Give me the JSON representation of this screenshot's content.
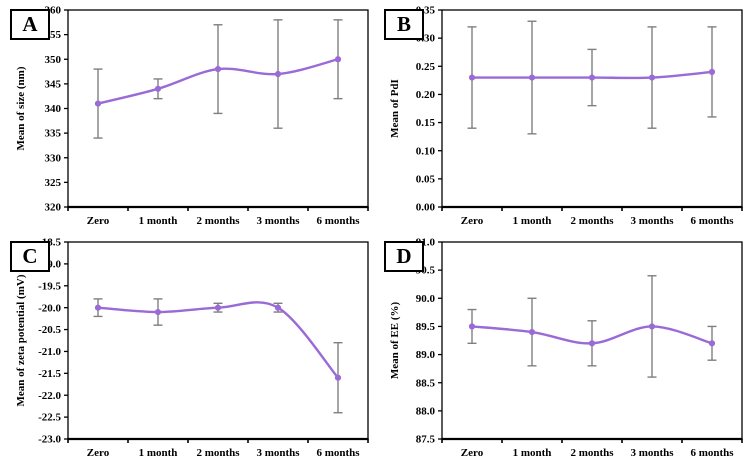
{
  "style": {
    "line_color": "#9a6ad6",
    "marker_color": "#9a6ad6",
    "error_color": "#7f7f7f",
    "axis_color": "#000000",
    "background": "#ffffff"
  },
  "chart_data": [
    {
      "panel": "A",
      "type": "line",
      "ylabel": "Mean of size (nm)",
      "xlabel": "",
      "ylim": [
        320,
        360
      ],
      "yticks": [
        320,
        325,
        330,
        335,
        340,
        345,
        350,
        355,
        360
      ],
      "ytick_labels": [
        "320",
        "325",
        "330",
        "335",
        "340",
        "345",
        "350",
        "355",
        "360"
      ],
      "categories": [
        "Zero",
        "1 month",
        "2 months",
        "3 months",
        "6 months"
      ],
      "values": [
        341,
        344,
        348,
        347,
        350
      ],
      "error_low": [
        334,
        342,
        339,
        336,
        342
      ],
      "error_high": [
        348,
        346,
        357,
        358,
        358
      ],
      "legend": "none",
      "grid": false
    },
    {
      "panel": "B",
      "type": "line",
      "ylabel": "Mean of PdI",
      "xlabel": "",
      "ylim": [
        0.0,
        0.35
      ],
      "yticks": [
        0.0,
        0.05,
        0.1,
        0.15,
        0.2,
        0.25,
        0.3,
        0.35
      ],
      "ytick_labels": [
        "0.00",
        "0.05",
        "0.10",
        "0.15",
        "0.20",
        "0.25",
        "0.30",
        "0.35"
      ],
      "categories": [
        "Zero",
        "1 month",
        "2 months",
        "3 months",
        "6 months"
      ],
      "values": [
        0.23,
        0.23,
        0.23,
        0.23,
        0.24
      ],
      "error_low": [
        0.14,
        0.13,
        0.18,
        0.14,
        0.16
      ],
      "error_high": [
        0.32,
        0.33,
        0.28,
        0.32,
        0.32
      ],
      "legend": "none",
      "grid": false
    },
    {
      "panel": "C",
      "type": "line",
      "ylabel": "Mean of zeta potential (mV)",
      "xlabel": "",
      "ylim": [
        -23.0,
        -18.5
      ],
      "yticks": [
        -23.0,
        -22.5,
        -22.0,
        -21.5,
        -21.0,
        -20.5,
        -20.0,
        -19.5,
        -19.0,
        -18.5
      ],
      "ytick_labels": [
        "-23.0",
        "-22.5",
        "-22.0",
        "-21.5",
        "-21.0",
        "-20.5",
        "-20.0",
        "-19.5",
        "-19.0",
        "-18.5"
      ],
      "categories": [
        "Zero",
        "1 month",
        "2 months",
        "3 months",
        "6 months"
      ],
      "values": [
        -20.0,
        -20.1,
        -20.0,
        -20.0,
        -21.6
      ],
      "error_low": [
        -20.2,
        -20.4,
        -20.1,
        -20.1,
        -22.4
      ],
      "error_high": [
        -19.8,
        -19.8,
        -19.9,
        -19.9,
        -20.8
      ],
      "legend": "none",
      "grid": false
    },
    {
      "panel": "D",
      "type": "line",
      "ylabel": "Mean of EE (%)",
      "xlabel": "",
      "ylim": [
        87.5,
        91.0
      ],
      "yticks": [
        87.5,
        88.0,
        88.5,
        89.0,
        89.5,
        90.0,
        90.5,
        91.0
      ],
      "ytick_labels": [
        "87.5",
        "88.0",
        "88.5",
        "89.0",
        "89.5",
        "90.0",
        "90.5",
        "91.0"
      ],
      "categories": [
        "Zero",
        "1 month",
        "2 months",
        "3 months",
        "6 months"
      ],
      "values": [
        89.5,
        89.4,
        89.2,
        89.5,
        89.2
      ],
      "error_low": [
        89.2,
        88.8,
        88.8,
        88.6,
        88.9
      ],
      "error_high": [
        89.8,
        90.0,
        89.6,
        90.4,
        89.5
      ],
      "legend": "none",
      "grid": false
    }
  ]
}
